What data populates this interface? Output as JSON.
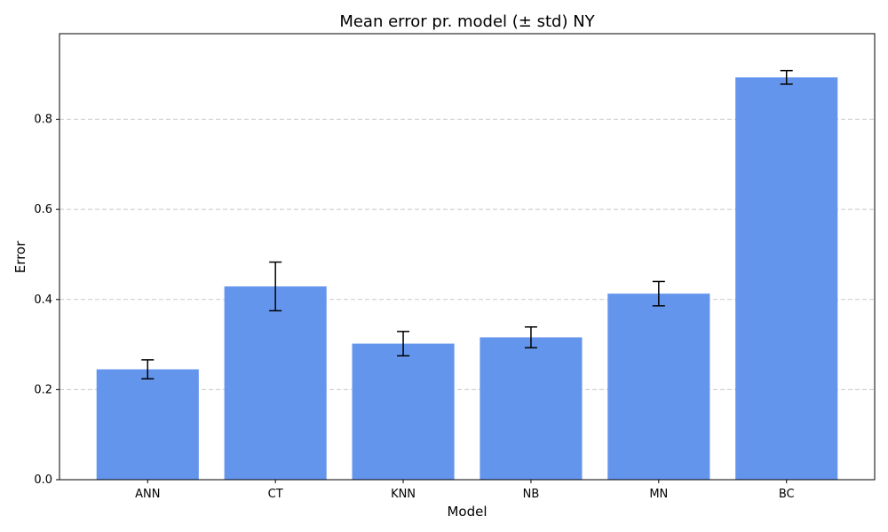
{
  "chart_data": {
    "type": "bar",
    "title": "Mean error pr. model (± std) NY",
    "xlabel": "Model",
    "ylabel": "Error",
    "categories": [
      "ANN",
      "CT",
      "KNN",
      "NB",
      "MN",
      "BC"
    ],
    "values": [
      0.245,
      0.429,
      0.302,
      0.316,
      0.413,
      0.893
    ],
    "errors": [
      0.021,
      0.054,
      0.027,
      0.023,
      0.027,
      0.015
    ],
    "ylim": [
      0,
      0.99
    ],
    "yticks": [
      0.0,
      0.2,
      0.4,
      0.6,
      0.8
    ],
    "ytick_labels": [
      "0.0",
      "0.2",
      "0.4",
      "0.6",
      "0.8"
    ],
    "grid": "y-dashed",
    "bar_color": "#6495ED",
    "grid_color": "#c8c8c8"
  }
}
